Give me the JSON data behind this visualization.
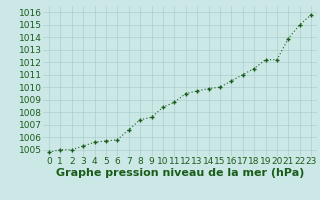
{
  "x": [
    0,
    1,
    2,
    3,
    4,
    5,
    6,
    7,
    8,
    9,
    10,
    11,
    12,
    13,
    14,
    15,
    16,
    17,
    18,
    19,
    20,
    21,
    22,
    23
  ],
  "y": [
    1004.8,
    1005.0,
    1005.0,
    1005.3,
    1005.6,
    1005.7,
    1005.8,
    1006.6,
    1007.4,
    1007.6,
    1008.4,
    1008.8,
    1009.5,
    1009.7,
    1009.9,
    1010.0,
    1010.5,
    1011.0,
    1011.5,
    1012.2,
    1012.2,
    1013.9,
    1015.0,
    1015.8
  ],
  "xlabel": "Graphe pression niveau de la mer (hPa)",
  "ylim": [
    1004.5,
    1016.5
  ],
  "xlim": [
    -0.5,
    23.5
  ],
  "yticks": [
    1005,
    1006,
    1007,
    1008,
    1009,
    1010,
    1011,
    1012,
    1013,
    1014,
    1015,
    1016
  ],
  "xticks": [
    0,
    1,
    2,
    3,
    4,
    5,
    6,
    7,
    8,
    9,
    10,
    11,
    12,
    13,
    14,
    15,
    16,
    17,
    18,
    19,
    20,
    21,
    22,
    23
  ],
  "line_color": "#1a5c1a",
  "marker": "+",
  "bg_color": "#cce8e6",
  "grid_color": "#aacfcd",
  "xlabel_fontsize": 8,
  "tick_fontsize": 6.5,
  "xlabel_fontweight": "bold"
}
